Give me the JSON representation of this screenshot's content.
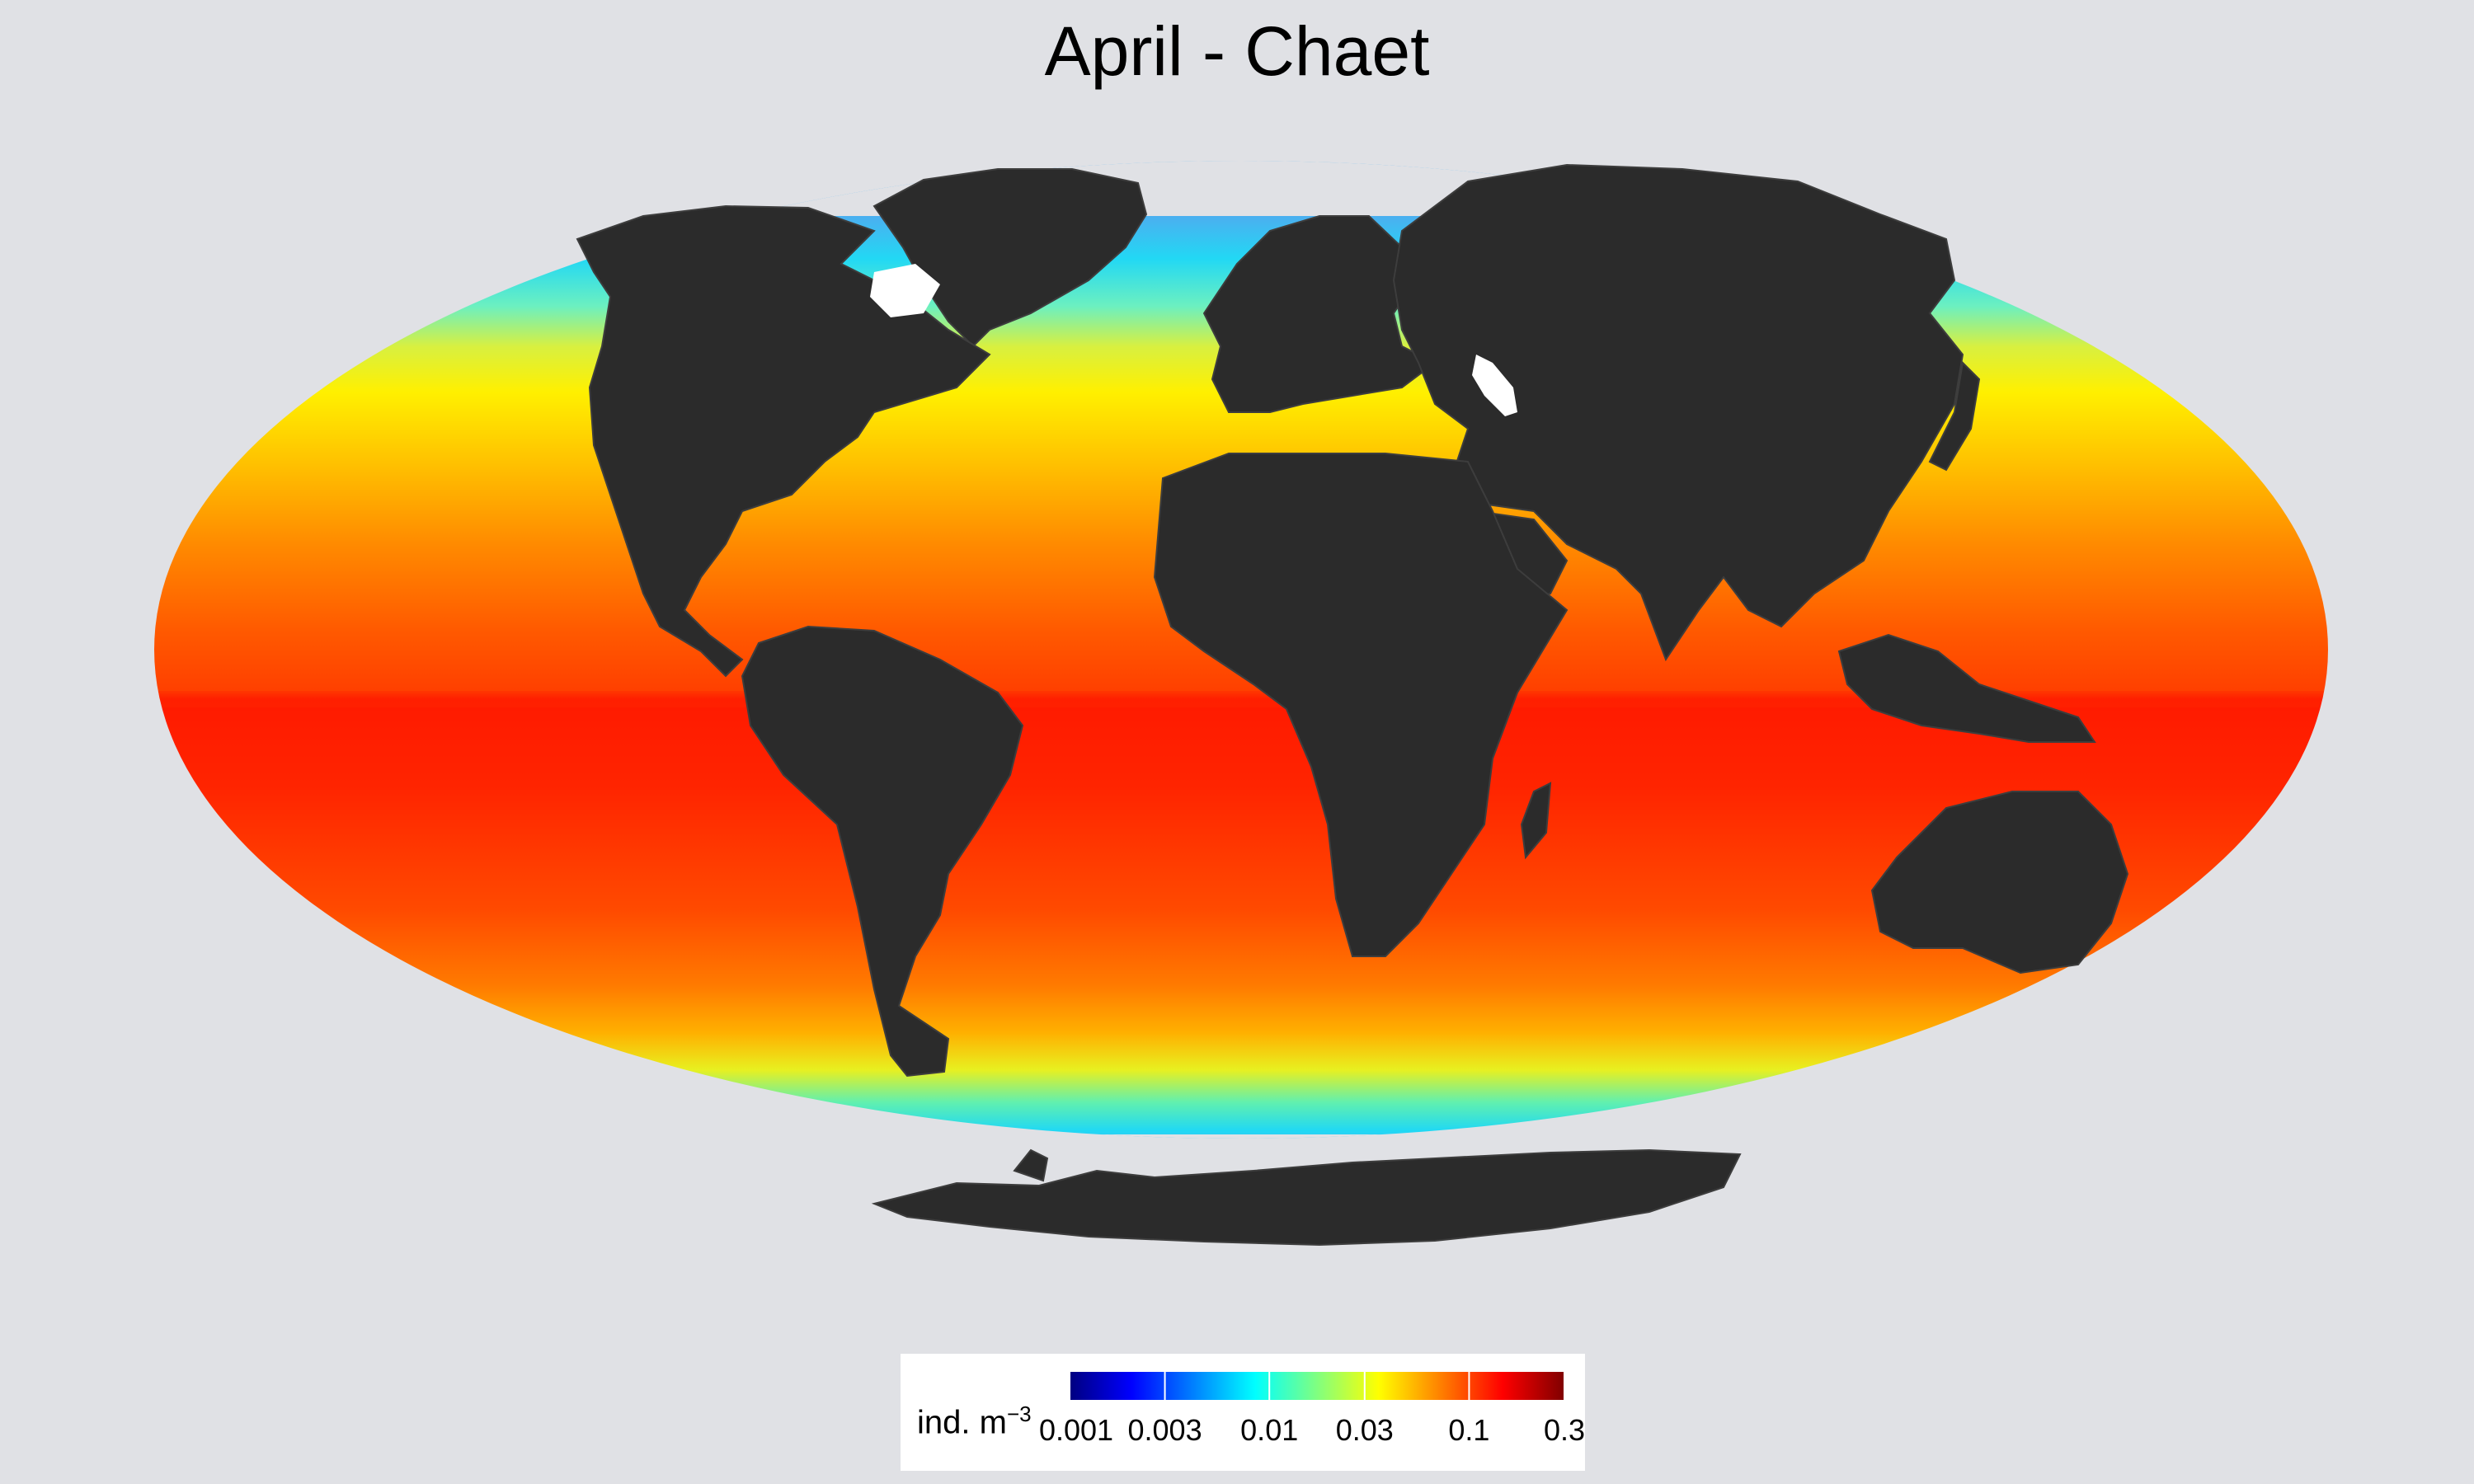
{
  "title": "April - Chaet",
  "legend": {
    "unit_text": "ind. m",
    "unit_exponent": "−3",
    "ticks": [
      "0.001",
      "0.003",
      "0.01",
      "0.03",
      "0.1",
      "0.3"
    ],
    "scale": "log",
    "range": [
      0.001,
      0.3
    ],
    "colormap": [
      "#00007f",
      "#0000ff",
      "#0080ff",
      "#00ffff",
      "#80ff80",
      "#ffff00",
      "#ff8000",
      "#ff0000",
      "#7f0000"
    ]
  },
  "map": {
    "projection": "Mollweide",
    "land_color": "#2b2b2b",
    "background_color": "#e0e1e5",
    "ocean_gradient_by_latitude": [
      {
        "lat": 75,
        "color": "#4ab0f0"
      },
      {
        "lat": 62,
        "color": "#22d8f4"
      },
      {
        "lat": 52,
        "color": "#6cf0c0"
      },
      {
        "lat": 45,
        "color": "#d8f040"
      },
      {
        "lat": 38,
        "color": "#fff000"
      },
      {
        "lat": 28,
        "color": "#ffc000"
      },
      {
        "lat": 18,
        "color": "#ff8a00"
      },
      {
        "lat": 8,
        "color": "#ff5a00"
      },
      {
        "lat": 1,
        "color": "#ff4000"
      },
      {
        "lat": 0,
        "color": "#ff1a00"
      },
      {
        "lat": -10,
        "color": "#ff2400"
      },
      {
        "lat": -25,
        "color": "#ff4a00"
      },
      {
        "lat": -35,
        "color": "#ff7a00"
      },
      {
        "lat": -42,
        "color": "#ffb000"
      },
      {
        "lat": -48,
        "color": "#e8f020"
      },
      {
        "lat": -54,
        "color": "#60f0b0"
      },
      {
        "lat": -60,
        "color": "#20d8f4"
      },
      {
        "lat": -65,
        "color": "#58b4f0"
      }
    ]
  }
}
